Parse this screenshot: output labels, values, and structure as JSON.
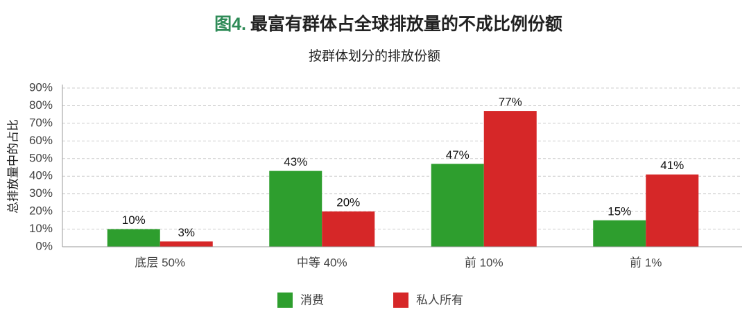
{
  "chart_data": {
    "type": "bar",
    "figure_label": "图4.",
    "title": "最富有群体占全球排放量的不成比例份额",
    "subtitle": "按群体划分的排放份额",
    "y_label": "总排放量中的占比",
    "categories": [
      "底层 50%",
      "中等 40%",
      "前 10%",
      "前 1%"
    ],
    "series": [
      {
        "name": "消费",
        "color": "#2e9e2e",
        "values": [
          10,
          43,
          47,
          15
        ],
        "value_labels": [
          "10%",
          "43%",
          "47%",
          "15%"
        ]
      },
      {
        "name": "私人所有",
        "color": "#d62728",
        "values": [
          3,
          20,
          77,
          41
        ],
        "value_labels": [
          "3%",
          "20%",
          "77%",
          "41%"
        ]
      }
    ],
    "ylim": [
      0,
      90
    ],
    "yticks": [
      {
        "value": 0,
        "label": "0%"
      },
      {
        "value": 10,
        "label": "10%"
      },
      {
        "value": 20,
        "label": "20%"
      },
      {
        "value": 30,
        "label": "30%"
      },
      {
        "value": 40,
        "label": "40%"
      },
      {
        "value": 50,
        "label": "50%"
      },
      {
        "value": 60,
        "label": "60%"
      },
      {
        "value": 70,
        "label": "70%"
      },
      {
        "value": 80,
        "label": "80%"
      },
      {
        "value": 90,
        "label": "90%"
      }
    ],
    "grid": true
  }
}
